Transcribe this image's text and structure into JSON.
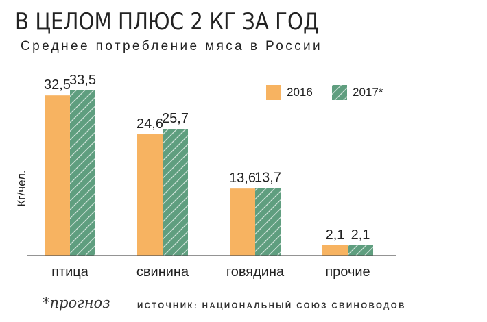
{
  "title": "В ЦЕЛОМ ПЛЮС 2 КГ ЗА ГОД",
  "subtitle": "Среднее потребление мяса в России",
  "footnote": "*прогноз",
  "source": "ИСТОЧНИК: НАЦИОНАЛЬНЫЙ СОЮЗ СВИНОВОДОВ",
  "colors": {
    "series_2016": "#F7B361",
    "series_2017": "#5F9E7F",
    "hatch": "#ffffff",
    "axis": "#555555"
  },
  "chart_data": {
    "type": "bar",
    "title": "В ЦЕЛОМ ПЛЮС 2 КГ ЗА ГОД",
    "subtitle": "Среднее потребление мяса в России",
    "xlabel": "",
    "ylabel": "Кг/чел.",
    "categories": [
      "птица",
      "свинина",
      "говядина",
      "прочие"
    ],
    "series": [
      {
        "name": "2016",
        "values": [
          32.5,
          24.6,
          13.6,
          2.1
        ],
        "labels": [
          "32,5",
          "24,6",
          "13,6",
          "2,1"
        ]
      },
      {
        "name": "2017*",
        "values": [
          33.5,
          25.7,
          13.7,
          2.1
        ],
        "labels": [
          "33,5",
          "25,7",
          "13,7",
          "2,1"
        ]
      }
    ],
    "ylim": [
      0,
      36
    ],
    "grid": false,
    "legend": "top-right"
  }
}
